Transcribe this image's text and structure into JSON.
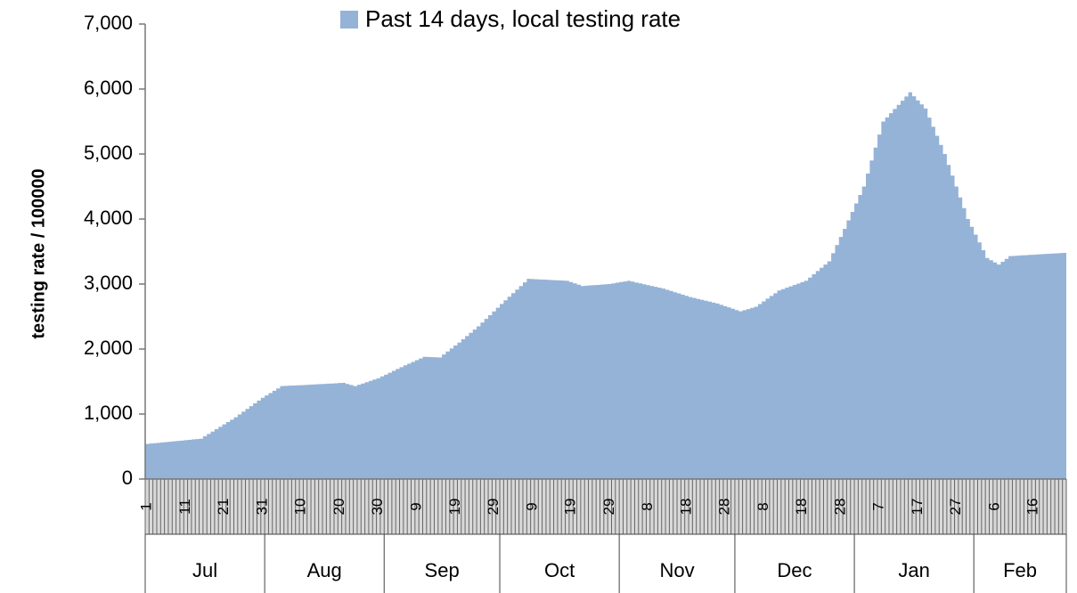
{
  "chart_data": {
    "type": "area",
    "y_label": "testing rate / 100000",
    "ylim": [
      0,
      7000
    ],
    "yticks": [
      0,
      {
        "value": 1000,
        "label": "1,000"
      },
      {
        "value": 2000,
        "label": "2,000"
      },
      {
        "value": 3000,
        "label": "3,000"
      },
      {
        "value": 4000,
        "label": "4,000"
      },
      {
        "value": 5000,
        "label": "5,000"
      },
      {
        "value": 6000,
        "label": "6,000"
      },
      {
        "value": 7000,
        "label": "7,000"
      }
    ],
    "legend": "top",
    "categories": [
      "1",
      null,
      null,
      null,
      null,
      null,
      null,
      null,
      null,
      null,
      "11",
      null,
      null,
      null,
      null,
      null,
      null,
      null,
      null,
      null,
      "21",
      null,
      null,
      null,
      null,
      null,
      null,
      null,
      null,
      null,
      "31",
      null,
      null,
      null,
      null,
      null,
      null,
      null,
      null,
      null,
      "10",
      null,
      null,
      null,
      null,
      null,
      null,
      null,
      null,
      null,
      "20",
      null,
      null,
      null,
      null,
      null,
      null,
      null,
      null,
      null,
      "30",
      null,
      null,
      null,
      null,
      null,
      null,
      null,
      null,
      null,
      "9",
      null,
      null,
      null,
      null,
      null,
      null,
      null,
      null,
      null,
      "19",
      null,
      null,
      null,
      null,
      null,
      null,
      null,
      null,
      null,
      "29",
      null,
      null,
      null,
      null,
      null,
      null,
      null,
      null,
      null,
      "9",
      null,
      null,
      null,
      null,
      null,
      null,
      null,
      null,
      null,
      "19",
      null,
      null,
      null,
      null,
      null,
      null,
      null,
      null,
      null,
      "29",
      null,
      null,
      null,
      null,
      null,
      null,
      null,
      null,
      null,
      "8",
      null,
      null,
      null,
      null,
      null,
      null,
      null,
      null,
      null,
      "18",
      null,
      null,
      null,
      null,
      null,
      null,
      null,
      null,
      null,
      "28",
      null,
      null,
      null,
      null,
      null,
      null,
      null,
      null,
      null,
      "8",
      null,
      null,
      null,
      null,
      null,
      null,
      null,
      null,
      null,
      "18",
      null,
      null,
      null,
      null,
      null,
      null,
      null,
      null,
      null,
      "28",
      null,
      null,
      null,
      null,
      null,
      null,
      null,
      null,
      null,
      "7",
      null,
      null,
      null,
      null,
      null,
      null,
      null,
      null,
      null,
      "17",
      null,
      null,
      null,
      null,
      null,
      null,
      null,
      null,
      null,
      "27",
      null,
      null,
      null,
      null,
      null,
      null,
      null,
      null,
      null,
      "6",
      null,
      null,
      null,
      null,
      null,
      null,
      null,
      null,
      null,
      "16",
      null,
      null,
      null,
      null,
      null,
      null,
      null,
      null
    ],
    "months": [
      {
        "label": "Jul",
        "days": 31
      },
      {
        "label": "Aug",
        "days": 31
      },
      {
        "label": "Sep",
        "days": 30
      },
      {
        "label": "Oct",
        "days": 31
      },
      {
        "label": "Nov",
        "days": 30
      },
      {
        "label": "Dec",
        "days": 31
      },
      {
        "label": "Jan",
        "days": 31
      },
      {
        "label": "Feb",
        "days": 24
      }
    ],
    "series": [
      {
        "name": "Past 14 days, local testing rate",
        "color": "#95b3d7",
        "values": [
          540,
          546,
          551,
          557,
          563,
          569,
          574,
          580,
          586,
          591,
          597,
          603,
          609,
          614,
          620,
          657,
          693,
          730,
          767,
          803,
          840,
          877,
          913,
          950,
          993,
          1036,
          1079,
          1121,
          1164,
          1207,
          1250,
          1286,
          1322,
          1358,
          1394,
          1430,
          1433,
          1436,
          1439,
          1441,
          1444,
          1447,
          1450,
          1453,
          1457,
          1460,
          1463,
          1467,
          1470,
          1473,
          1477,
          1480,
          1463,
          1447,
          1430,
          1450,
          1470,
          1490,
          1510,
          1530,
          1550,
          1579,
          1607,
          1636,
          1664,
          1693,
          1721,
          1750,
          1776,
          1802,
          1828,
          1854,
          1880,
          1878,
          1875,
          1873,
          1870,
          1916,
          1962,
          2008,
          2054,
          2100,
          2150,
          2200,
          2250,
          2300,
          2350,
          2407,
          2464,
          2521,
          2579,
          2636,
          2693,
          2750,
          2805,
          2860,
          2915,
          2970,
          3025,
          3080,
          3077,
          3074,
          3071,
          3068,
          3065,
          3062,
          3059,
          3056,
          3053,
          3050,
          3030,
          3010,
          2990,
          2970,
          2974,
          2979,
          2983,
          2987,
          2991,
          2996,
          3000,
          3010,
          3020,
          3030,
          3040,
          3050,
          3037,
          3023,
          3010,
          2997,
          2983,
          2970,
          2957,
          2943,
          2930,
          2911,
          2893,
          2874,
          2856,
          2837,
          2819,
          2800,
          2786,
          2771,
          2757,
          2743,
          2729,
          2714,
          2700,
          2680,
          2660,
          2640,
          2620,
          2600,
          2580,
          2598,
          2615,
          2633,
          2650,
          2692,
          2733,
          2775,
          2817,
          2858,
          2900,
          2921,
          2943,
          2964,
          2986,
          3007,
          3029,
          3050,
          3100,
          3150,
          3200,
          3250,
          3300,
          3350,
          3475,
          3600,
          3725,
          3850,
          3980,
          4110,
          4240,
          4370,
          4500,
          4700,
          4900,
          5100,
          5300,
          5500,
          5564,
          5629,
          5693,
          5757,
          5821,
          5886,
          5950,
          5888,
          5825,
          5763,
          5700,
          5560,
          5420,
          5280,
          5140,
          5000,
          4833,
          4667,
          4500,
          4333,
          4167,
          4000,
          3880,
          3760,
          3640,
          3520,
          3400,
          3367,
          3333,
          3300,
          3343,
          3387,
          3430,
          3434,
          3437,
          3441,
          3444,
          3448,
          3451,
          3455,
          3459,
          3462,
          3466,
          3469,
          3473,
          3476,
          3480
        ]
      }
    ]
  }
}
